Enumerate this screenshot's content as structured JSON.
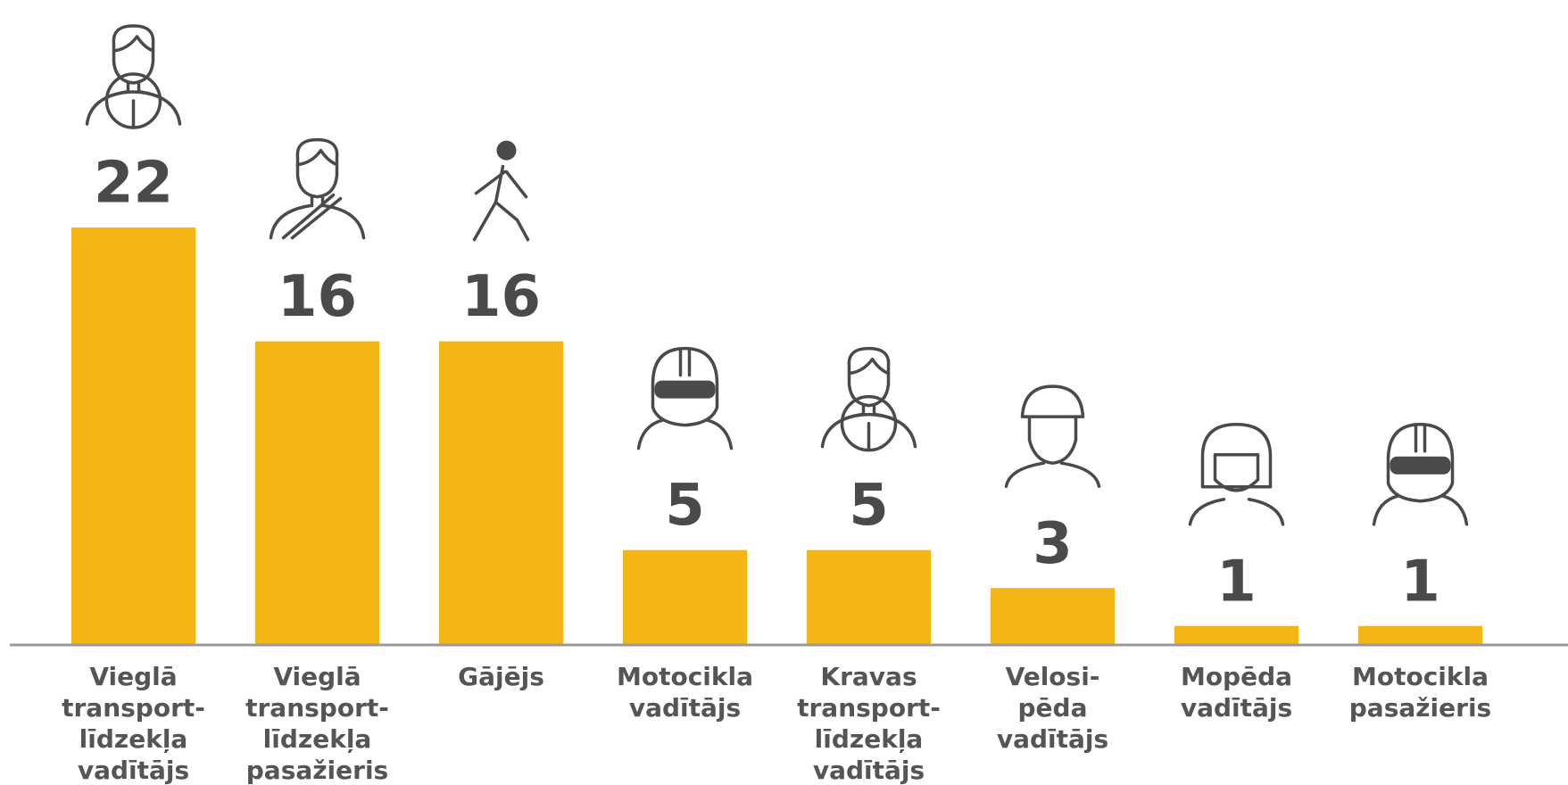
{
  "chart_data": {
    "type": "bar",
    "categories": [
      [
        "Vieglā",
        "transport-",
        "līdzekļa",
        "vadītājs"
      ],
      [
        "Vieglā",
        "transport-",
        "līdzekļa",
        "pasažieris"
      ],
      [
        "Gājējs"
      ],
      [
        "Motocikla",
        "vadītājs"
      ],
      [
        "Kravas",
        "transport-",
        "līdzekļa",
        "vadītājs"
      ],
      [
        "Velosi-",
        "pēda",
        "vadītājs"
      ],
      [
        "Mopēda",
        "vadītājs"
      ],
      [
        "Motocikla",
        "pasažieris"
      ]
    ],
    "values": [
      22,
      16,
      16,
      5,
      5,
      3,
      1,
      1
    ],
    "color": "#f4b515"
  }
}
